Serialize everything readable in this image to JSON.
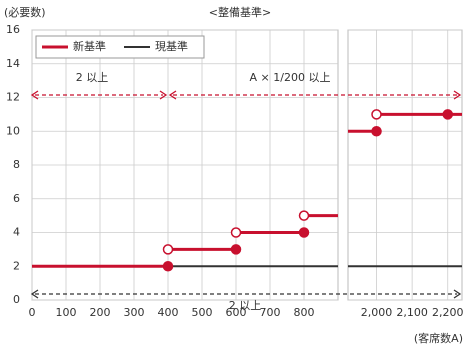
{
  "chart_data": {
    "type": "step",
    "title": "<整備基準>",
    "ylabel": "(必要数)",
    "xlabel": "(客席数A)",
    "ylim": [
      0,
      16
    ],
    "yticks": [
      0,
      2,
      4,
      6,
      8,
      10,
      12,
      14,
      16
    ],
    "grid": true,
    "legend": "top-left",
    "panels": [
      {
        "xlim": [
          0,
          900
        ],
        "xticks": [
          0,
          100,
          200,
          300,
          400,
          500,
          600,
          700,
          800
        ]
      },
      {
        "xlim": [
          1920,
          2240
        ],
        "xticks": [
          {
            "value": 2000,
            "label": "2,000"
          },
          {
            "value": 2100,
            "label": "2,100"
          },
          {
            "value": 2200,
            "label": "2,200"
          }
        ]
      }
    ],
    "series": [
      {
        "name": "現基準",
        "color": "#333333",
        "x": [
          0,
          1920
        ],
        "values": [
          2,
          2
        ]
      },
      {
        "name": "新基準",
        "color": "#c8102e",
        "x": [
          0,
          400,
          600,
          800,
          1920,
          2000
        ],
        "values": [
          2,
          3,
          4,
          5,
          10,
          11
        ],
        "closed_markers": {
          "x": [
            400,
            600,
            800,
            2000,
            2200
          ],
          "values": [
            2,
            3,
            4,
            10,
            11
          ]
        },
        "open_markers": {
          "x": [
            400,
            600,
            800,
            2000
          ],
          "values": [
            3,
            4,
            5,
            11
          ]
        }
      }
    ],
    "annotations": [
      "2 以上",
      "A × 1/200 以上",
      "2 以上"
    ]
  }
}
